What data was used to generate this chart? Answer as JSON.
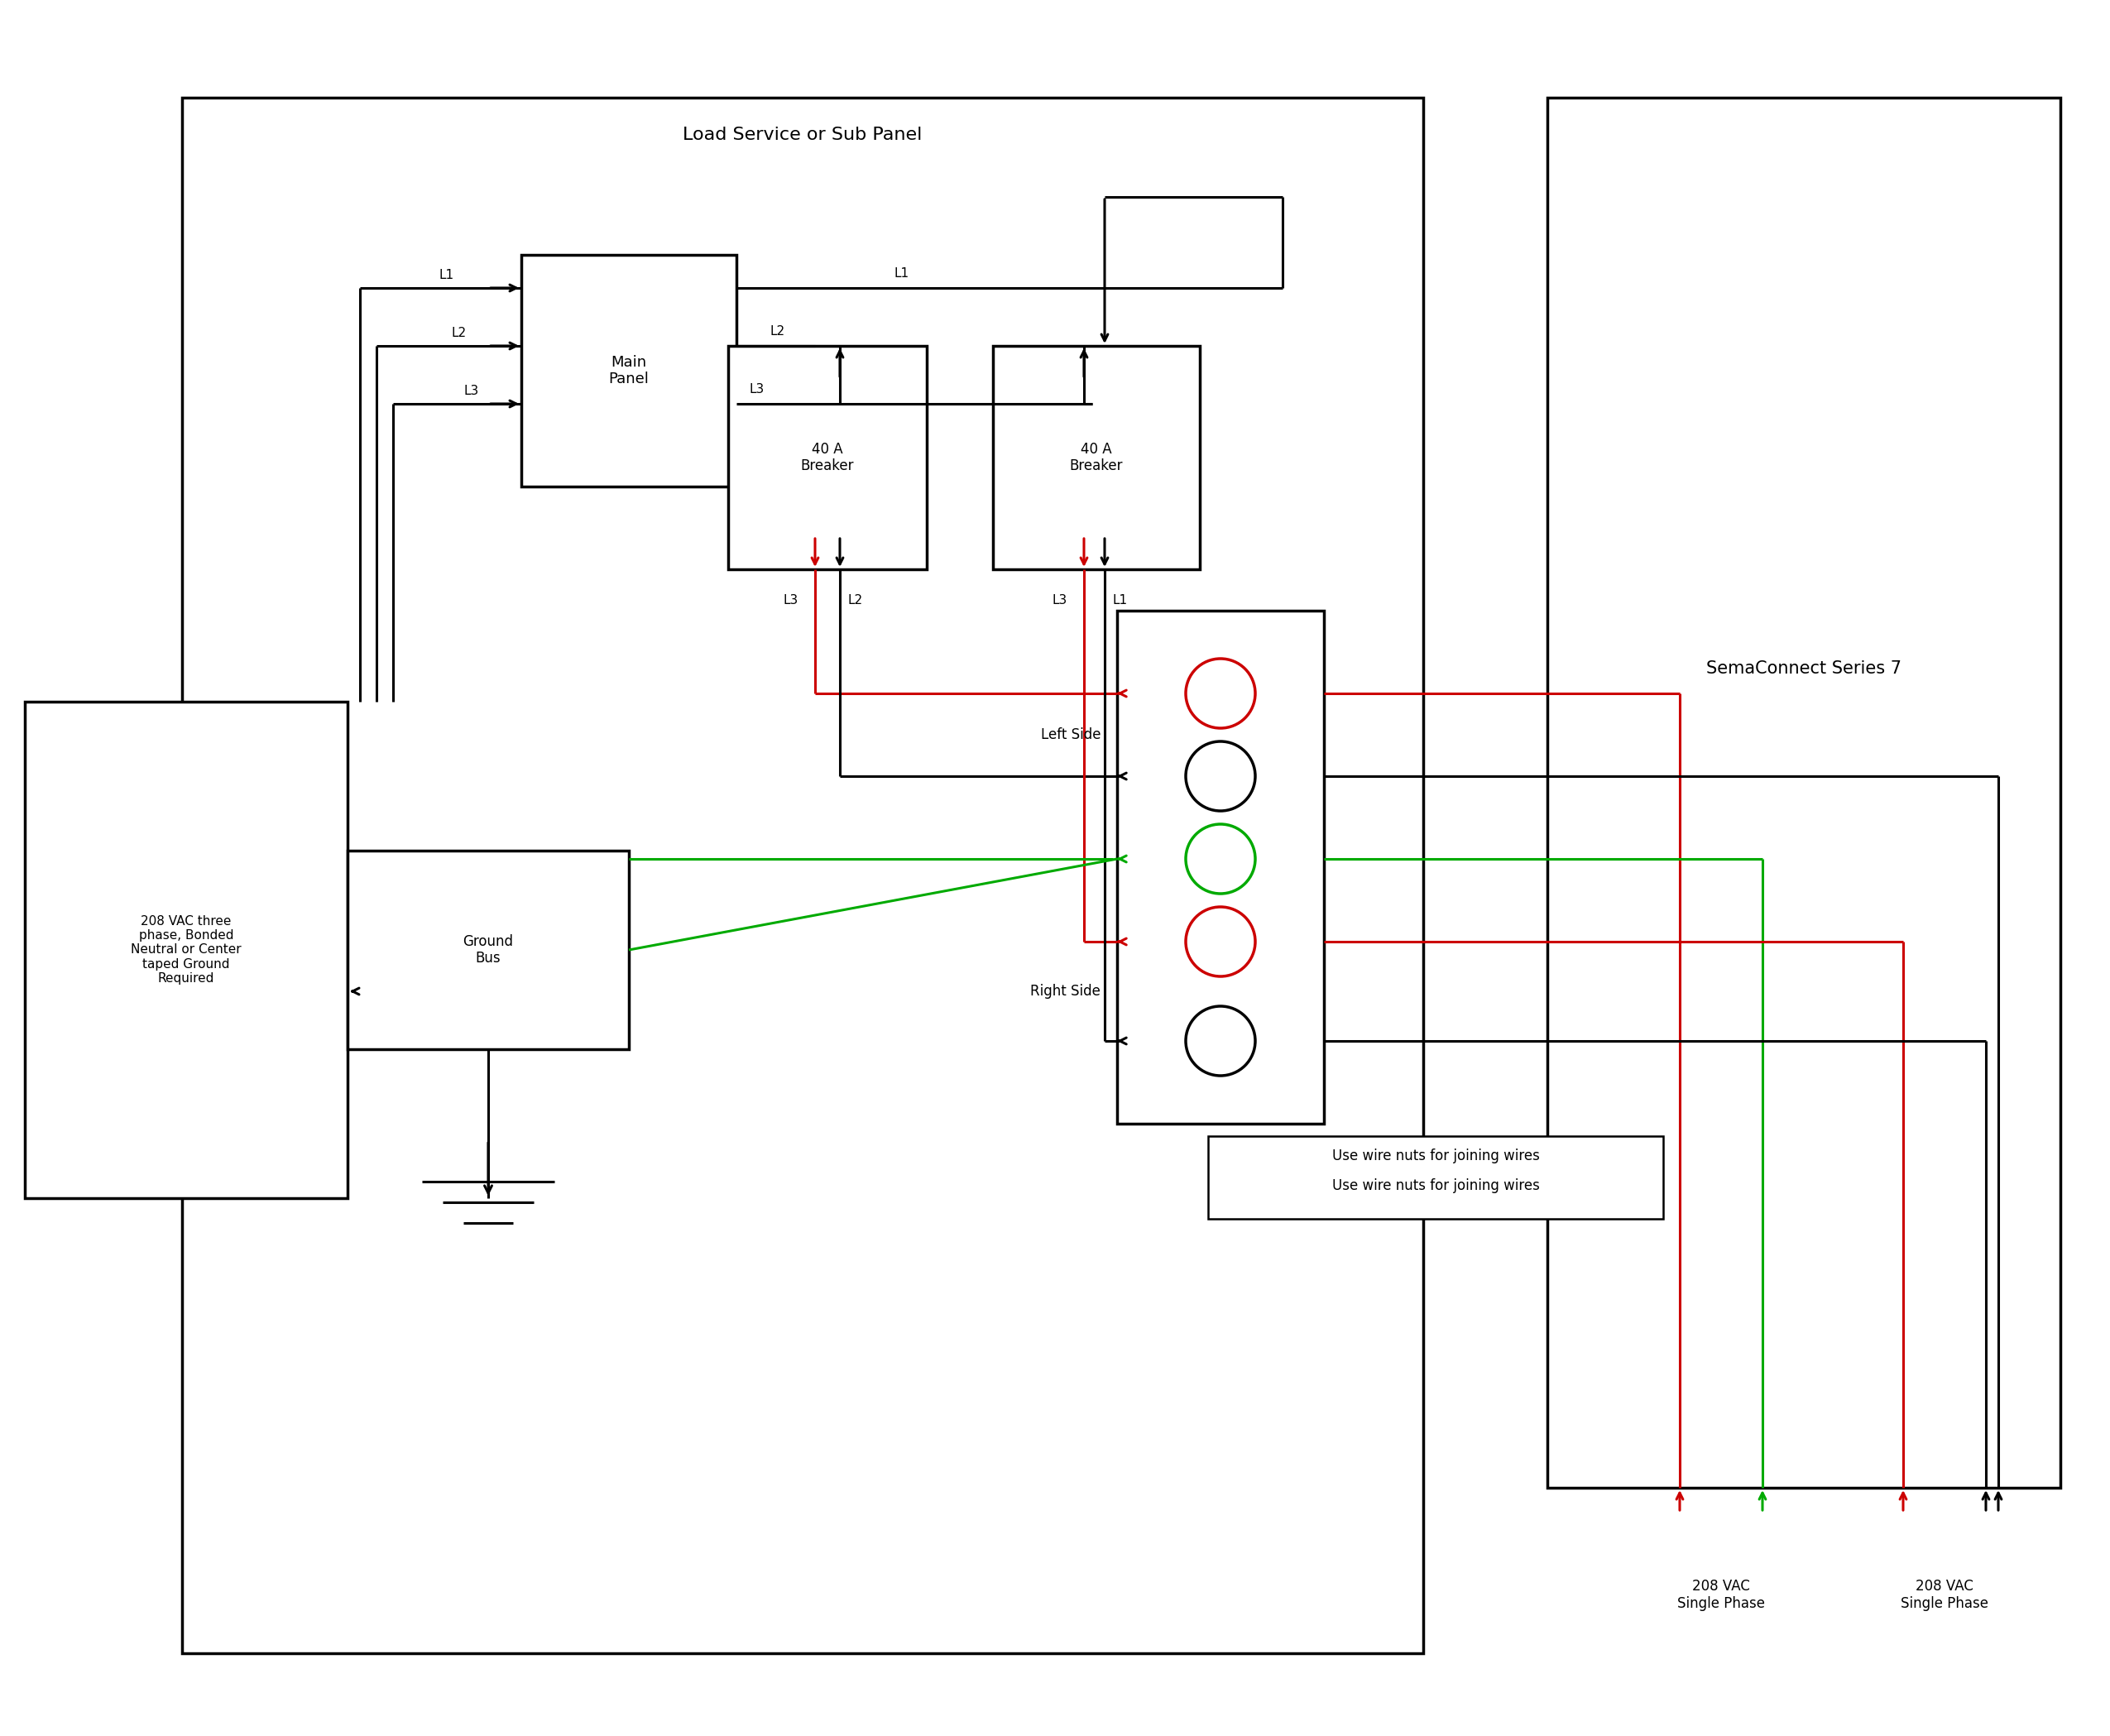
{
  "bg_color": "#ffffff",
  "lc": "#000000",
  "rc": "#cc0000",
  "gc": "#00aa00",
  "panel_title": "Load Service or Sub Panel",
  "sema_title": "SemaConnect Series 7",
  "source_label": "208 VAC three\nphase, Bonded\nNeutral or Center\ntaped Ground\nRequired",
  "ground_label": "Ground\nBus",
  "breaker_label": "40 A\nBreaker",
  "left_side_label": "Left Side",
  "right_side_label": "Right Side",
  "vac_left_label": "208 VAC\nSingle Phase",
  "vac_right_label": "208 VAC\nSingle Phase",
  "wire_nuts_label": "Use wire nuts for joining wires",
  "lw": 2.2,
  "lw_thick": 2.5
}
